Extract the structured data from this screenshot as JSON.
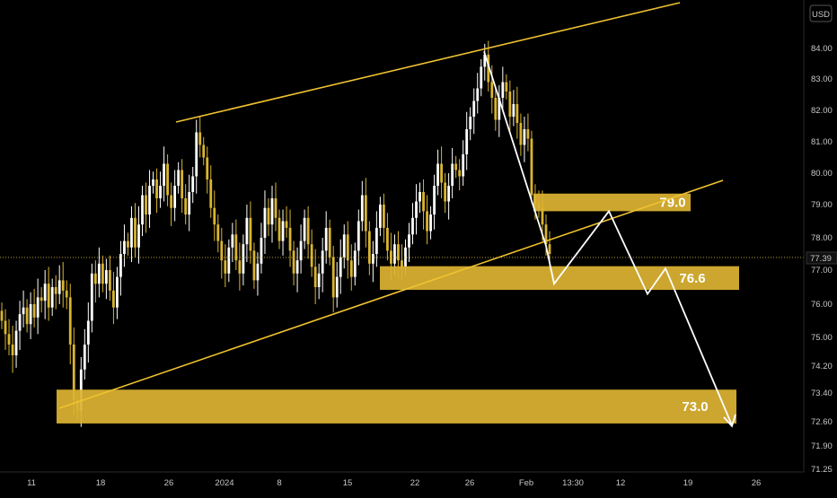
{
  "chart_data": {
    "type": "candlestick",
    "currency": "USD",
    "colors": {
      "background": "#000000",
      "candle_up": "#ffffff",
      "candle_down": "#d9b530",
      "trendline": "#f0c330",
      "zone_fill": "#dcb332",
      "projection": "#ffffff",
      "axis_text": "#c8c8c8"
    },
    "y_axis": {
      "min": 71.25,
      "max": 85.0,
      "ticks": [
        "84.00",
        "83.00",
        "82.00",
        "81.00",
        "80.00",
        "79.00",
        "78.00",
        "77.00",
        "76.00",
        "75.00",
        "74.20",
        "73.40",
        "72.60",
        "71.90",
        "71.25"
      ],
      "last_price": "77.39"
    },
    "x_axis": {
      "ticks": [
        "11",
        "18",
        "26",
        "2024",
        "8",
        "15",
        "22",
        "26",
        "Feb",
        "13:30",
        "12",
        "19",
        "26"
      ]
    },
    "zones": [
      {
        "label": "79.0",
        "low": 78.8,
        "high": 79.35
      },
      {
        "label": "76.6",
        "low": 76.42,
        "high": 77.12
      },
      {
        "label": "73.0",
        "low": 72.55,
        "high": 73.5
      }
    ],
    "projection_path": [
      77.75,
      76.6,
      78.8,
      76.3,
      77.05,
      72.5
    ],
    "candles_close": [
      75.5,
      75.1,
      74.8,
      74.5,
      75.2,
      75.7,
      75.9,
      75.4,
      76.0,
      75.6,
      76.2,
      76.1,
      76.6,
      75.9,
      76.5,
      76.3,
      76.7,
      76.4,
      76.2,
      74.8,
      73.2,
      72.9,
      74.1,
      74.8,
      75.5,
      76.9,
      76.6,
      77.2,
      76.6,
      77.0,
      76.4,
      75.9,
      76.8,
      77.5,
      77.9,
      77.7,
      78.6,
      77.7,
      78.4,
      79.3,
      78.7,
      79.6,
      79.8,
      79.2,
      79.6,
      80.3,
      79.3,
      78.9,
      79.6,
      80.1,
      79.2,
      78.7,
      79.4,
      79.9,
      81.3,
      80.9,
      80.5,
      79.8,
      78.9,
      78.4,
      77.9,
      77.3,
      76.9,
      77.7,
      78.1,
      77.3,
      76.9,
      77.8,
      78.6,
      77.6,
      76.7,
      77.2,
      78.0,
      78.9,
      78.4,
      79.2,
      78.6,
      77.9,
      78.5,
      78.3,
      77.6,
      76.9,
      77.3,
      77.9,
      78.6,
      77.8,
      77.1,
      76.5,
      76.9,
      77.6,
      78.3,
      77.4,
      76.2,
      76.8,
      77.4,
      78.1,
      77.3,
      76.8,
      77.6,
      78.5,
      79.3,
      78.2,
      77.2,
      77.5,
      78.3,
      79.0,
      78.3,
      77.6,
      77.2,
      77.8,
      77.3,
      77.1,
      77.7,
      78.1,
      78.6,
      79.1,
      79.4,
      78.8,
      78.2,
      78.7,
      79.6,
      80.3,
      79.7,
      79.1,
      79.6,
      80.3,
      80.1,
      79.9,
      80.6,
      81.4,
      81.8,
      82.3,
      82.7,
      83.4,
      83.8,
      82.9,
      82.4,
      81.7,
      82.4,
      82.9,
      82.6,
      81.8,
      82.2,
      81.6,
      80.9,
      81.4,
      81.1,
      79.3,
      79.0,
      78.9,
      78.4,
      77.8,
      77.5
    ]
  }
}
